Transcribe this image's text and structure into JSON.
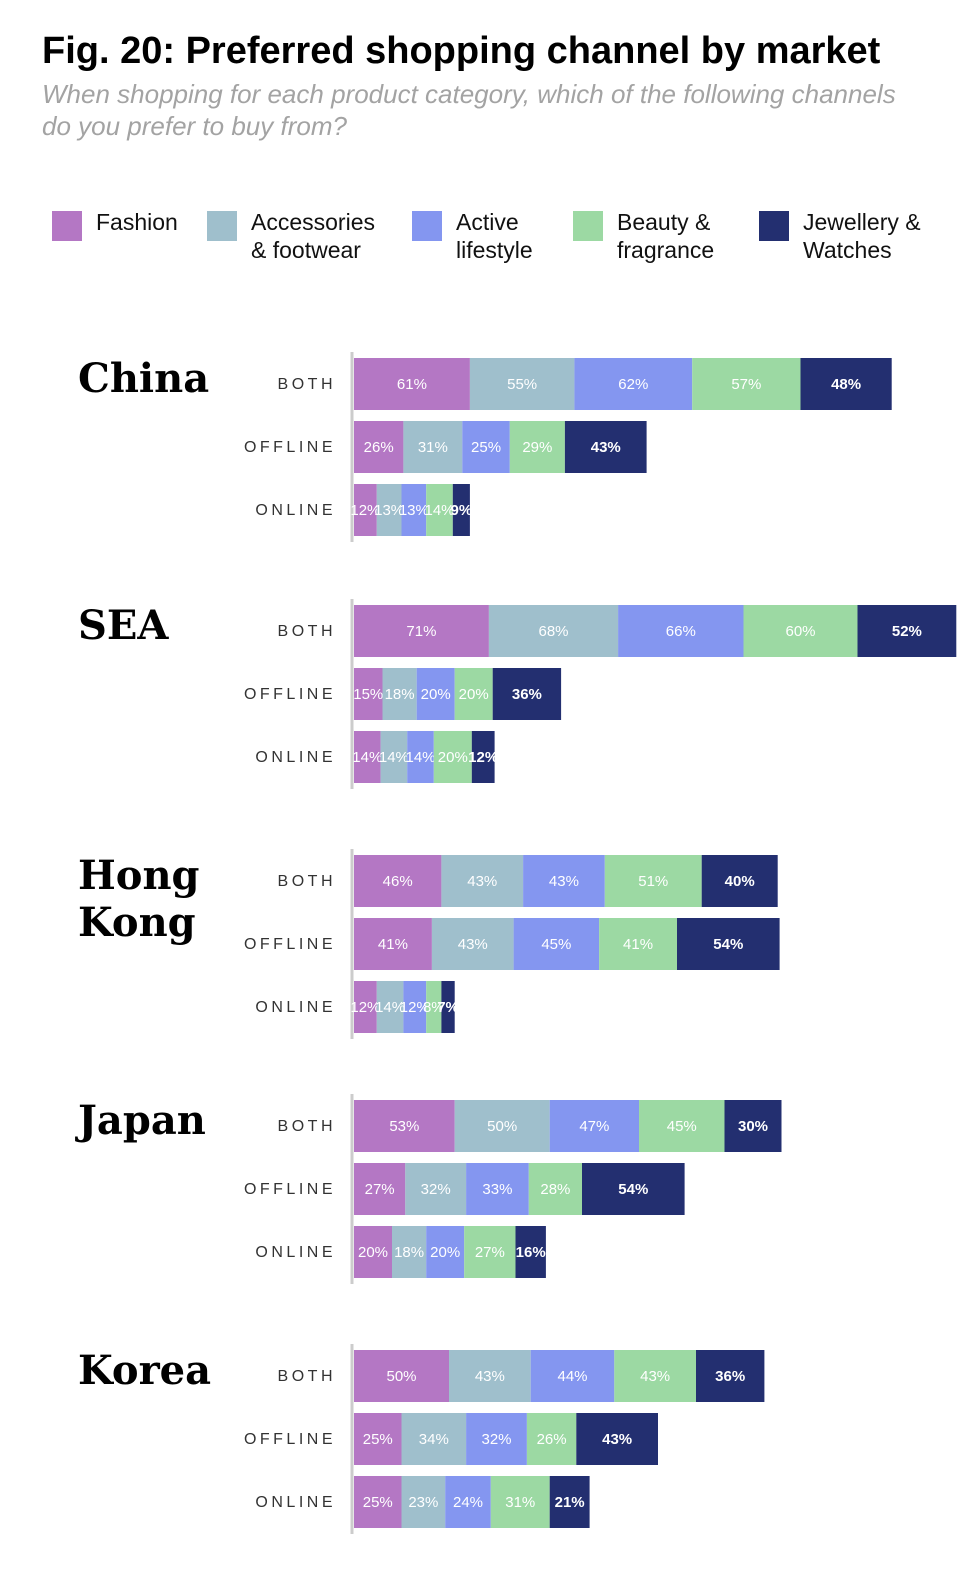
{
  "title": "Fig. 20: Preferred shopping channel by market",
  "subtitle": "When shopping for each product category, which of the following channels do you prefer to buy from?",
  "legend": [
    {
      "label": "Fashion",
      "color": "#b477c4"
    },
    {
      "label": "Accessories\n& footwear",
      "color": "#9fbfcc"
    },
    {
      "label": "Active\nlifestyle",
      "color": "#8496f0"
    },
    {
      "label": "Beauty &\nfragrance",
      "color": "#9cd9a3"
    },
    {
      "label": "Jewellery &\nWatches",
      "color": "#232f70"
    }
  ],
  "chart_data": {
    "type": "bar",
    "orientation": "horizontal",
    "stacked": true,
    "categories": [
      "BOTH",
      "OFFLINE",
      "ONLINE"
    ],
    "series_names": [
      "Fashion",
      "Accessories & footwear",
      "Active lifestyle",
      "Beauty & fragrance",
      "Jewellery & Watches"
    ],
    "colors": [
      "#b477c4",
      "#9fbfcc",
      "#8496f0",
      "#9cd9a3",
      "#232f70"
    ],
    "unit": "%",
    "markets": [
      {
        "name": "China",
        "rows": [
          {
            "label": "BOTH",
            "values": [
              61,
              55,
              62,
              57,
              48
            ]
          },
          {
            "label": "OFFLINE",
            "values": [
              26,
              31,
              25,
              29,
              43
            ]
          },
          {
            "label": "ONLINE",
            "values": [
              12,
              13,
              13,
              14,
              9
            ]
          }
        ]
      },
      {
        "name": "SEA",
        "rows": [
          {
            "label": "BOTH",
            "values": [
              71,
              68,
              66,
              60,
              52
            ]
          },
          {
            "label": "OFFLINE",
            "values": [
              15,
              18,
              20,
              20,
              36
            ]
          },
          {
            "label": "ONLINE",
            "values": [
              14,
              14,
              14,
              20,
              12
            ]
          }
        ]
      },
      {
        "name": "Hong Kong",
        "rows": [
          {
            "label": "BOTH",
            "values": [
              46,
              43,
              43,
              51,
              40
            ]
          },
          {
            "label": "OFFLINE",
            "values": [
              41,
              43,
              45,
              41,
              54
            ]
          },
          {
            "label": "ONLINE",
            "values": [
              12,
              14,
              12,
              8,
              7
            ]
          }
        ]
      },
      {
        "name": "Japan",
        "rows": [
          {
            "label": "BOTH",
            "values": [
              53,
              50,
              47,
              45,
              30
            ]
          },
          {
            "label": "OFFLINE",
            "values": [
              27,
              32,
              33,
              28,
              54
            ]
          },
          {
            "label": "ONLINE",
            "values": [
              20,
              18,
              20,
              27,
              16
            ]
          }
        ]
      },
      {
        "name": "Korea",
        "rows": [
          {
            "label": "BOTH",
            "values": [
              50,
              43,
              44,
              43,
              36
            ]
          },
          {
            "label": "OFFLINE",
            "values": [
              25,
              34,
              32,
              26,
              43
            ]
          },
          {
            "label": "ONLINE",
            "values": [
              25,
              23,
              24,
              31,
              21
            ]
          }
        ]
      }
    ]
  }
}
